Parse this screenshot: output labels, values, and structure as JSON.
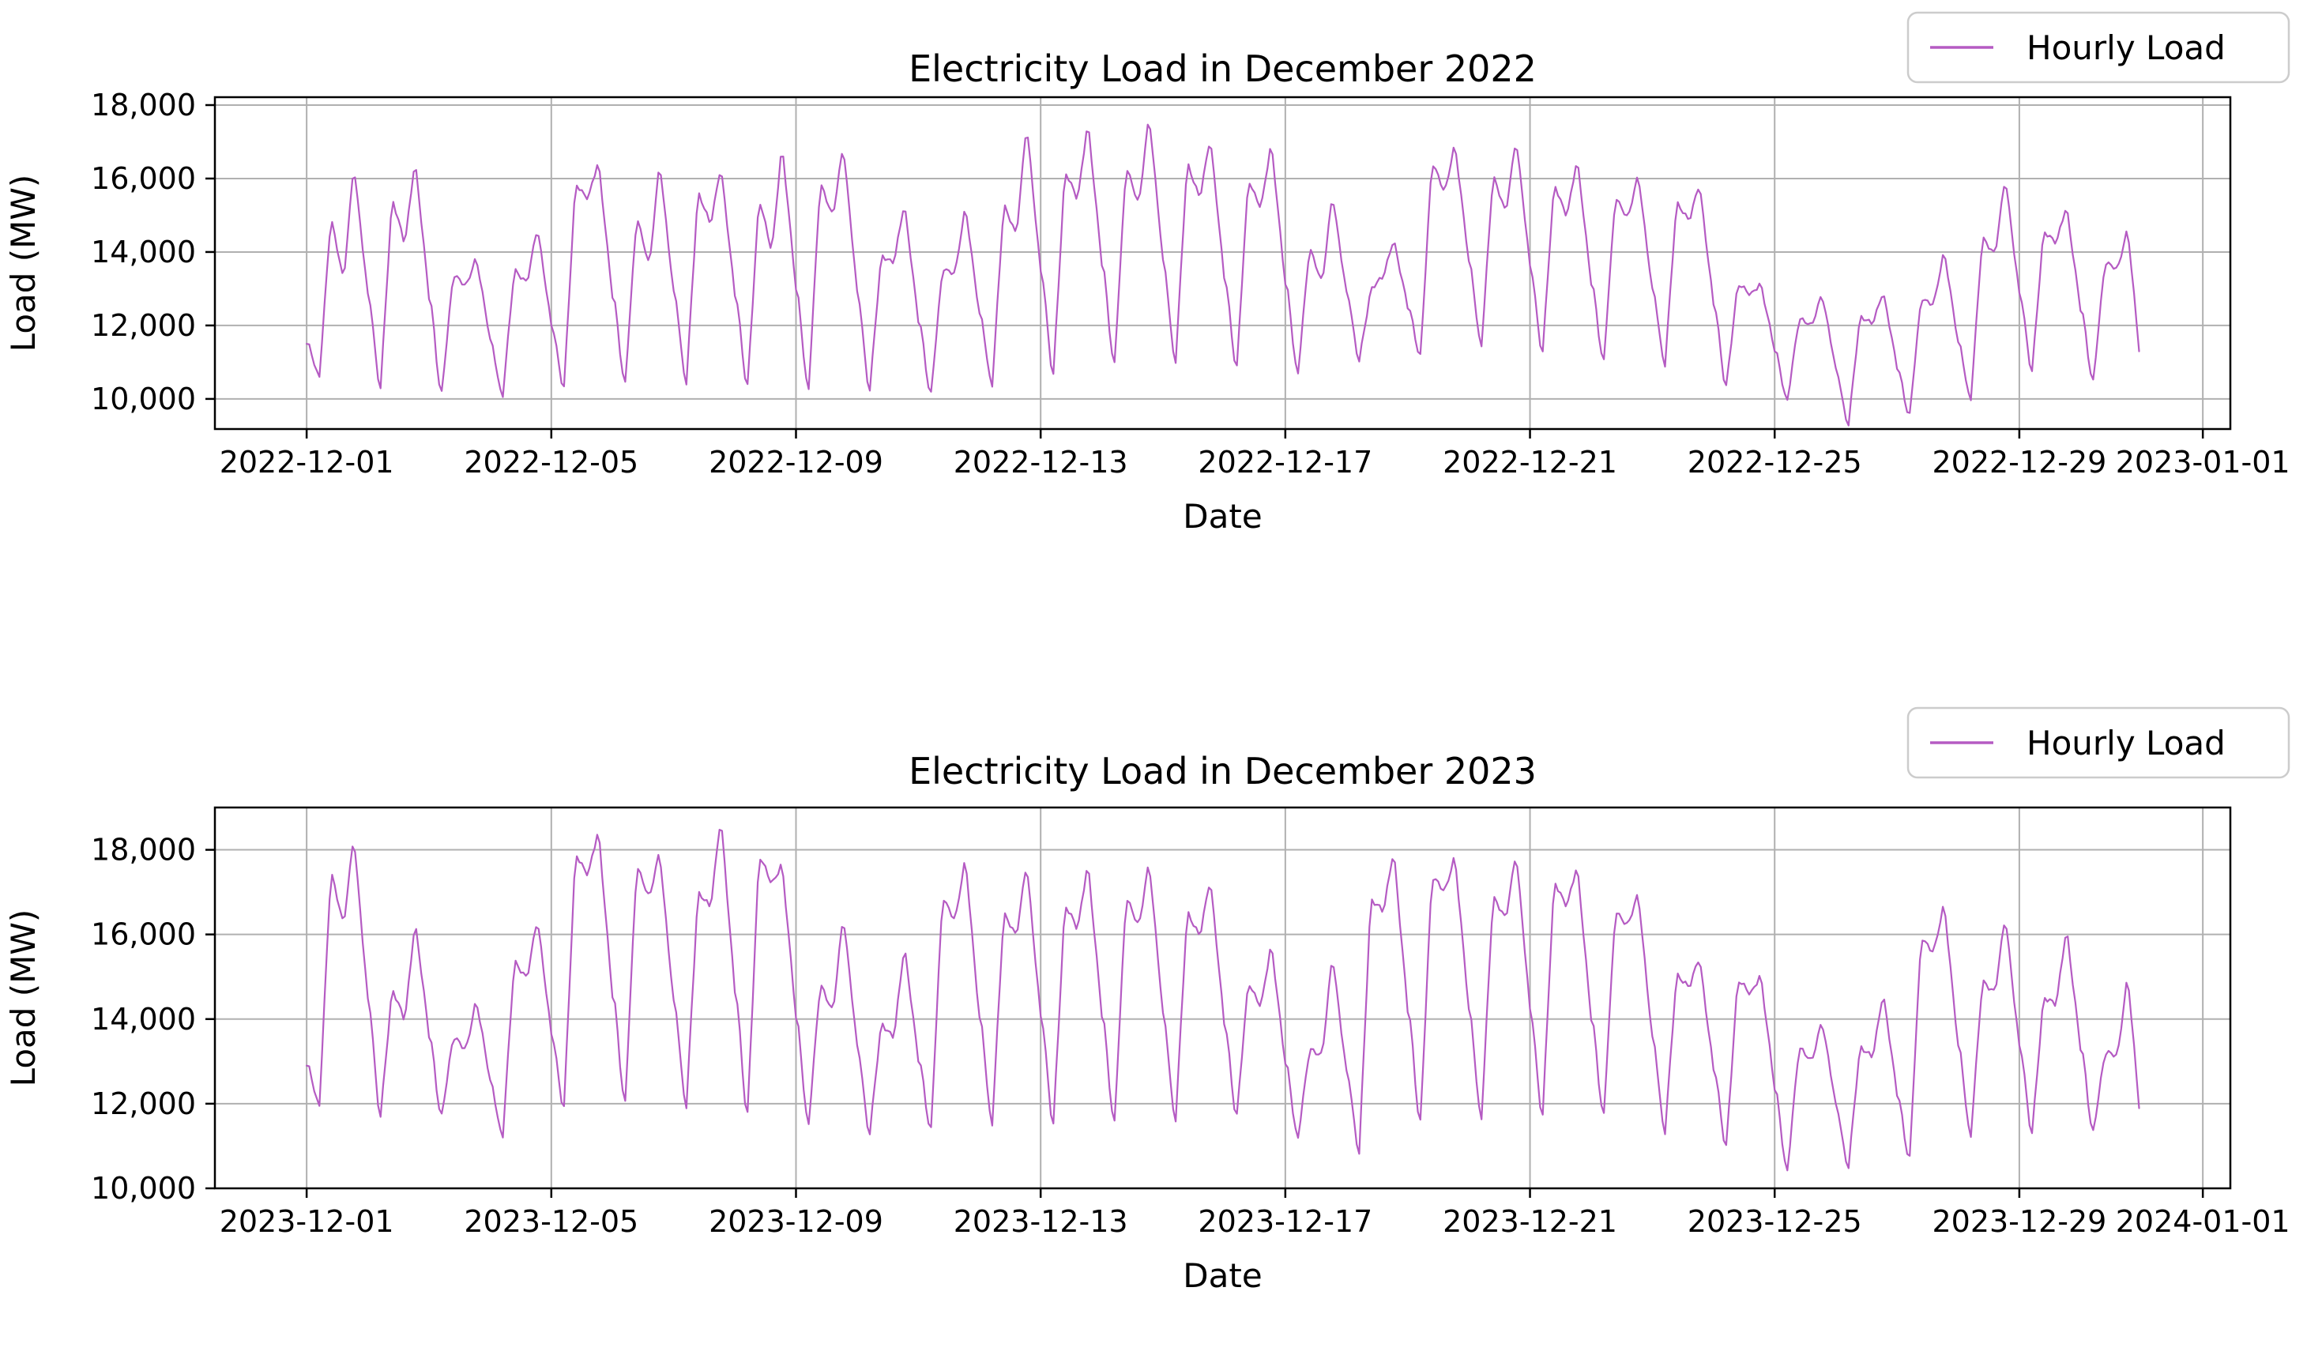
{
  "figure": {
    "background": "#ffffff"
  },
  "colors": {
    "line": "#b55bc3",
    "grid": "#b0b0b0",
    "spine": "#000000",
    "legend_border": "#cccccc",
    "text": "#000000"
  },
  "chart_data": [
    {
      "type": "line",
      "title": "Electricity Load in December 2022",
      "xlabel": "Date",
      "ylabel": "Load (MW)",
      "legend_label": "Hourly Load",
      "line_color": "#b55bc3",
      "grid": true,
      "legend_position": "outside-top-right",
      "x_start_date": "2022-12-01",
      "points_per_day": 24,
      "xlim_days": [
        -1.5,
        31.45
      ],
      "ylim": [
        9180,
        18215
      ],
      "y_ticks": [
        {
          "value": 10000,
          "label": "10,000"
        },
        {
          "value": 12000,
          "label": "12,000"
        },
        {
          "value": 14000,
          "label": "14,000"
        },
        {
          "value": 16000,
          "label": "16,000"
        },
        {
          "value": 18000,
          "label": "18,000"
        }
      ],
      "x_ticks": [
        {
          "day": 0,
          "label": "2022-12-01"
        },
        {
          "day": 4,
          "label": "2022-12-05"
        },
        {
          "day": 8,
          "label": "2022-12-09"
        },
        {
          "day": 12,
          "label": "2022-12-13"
        },
        {
          "day": 16,
          "label": "2022-12-17"
        },
        {
          "day": 20,
          "label": "2022-12-21"
        },
        {
          "day": 24,
          "label": "2022-12-25"
        },
        {
          "day": 28,
          "label": "2022-12-29"
        },
        {
          "day": 31,
          "label": "2023-01-01"
        }
      ],
      "start_value_mw": 11500,
      "end_value_mw": 11300,
      "daily_anchors_hours": {
        "trough": 5,
        "morning": 9.5,
        "midday": 14.5,
        "evening": 18.5
      },
      "days": [
        {
          "date": "2022-12-01",
          "trough_mw": 10600,
          "morning_peak_mw": 15000,
          "midday_dip_mw": 13150,
          "evening_peak_mw": 16450
        },
        {
          "date": "2022-12-02",
          "trough_mw": 10350,
          "morning_peak_mw": 15450,
          "midday_dip_mw": 14200,
          "evening_peak_mw": 16550
        },
        {
          "date": "2022-12-03",
          "trough_mw": 10200,
          "morning_peak_mw": 13350,
          "midday_dip_mw": 13100,
          "evening_peak_mw": 13850
        },
        {
          "date": "2022-12-04",
          "trough_mw": 10100,
          "morning_peak_mw": 13500,
          "midday_dip_mw": 13200,
          "evening_peak_mw": 14650
        },
        {
          "date": "2022-12-05",
          "trough_mw": 10300,
          "morning_peak_mw": 15900,
          "midday_dip_mw": 15450,
          "evening_peak_mw": 16450
        },
        {
          "date": "2022-12-06",
          "trough_mw": 10400,
          "morning_peak_mw": 15050,
          "midday_dip_mw": 13550,
          "evening_peak_mw": 16500
        },
        {
          "date": "2022-12-07",
          "trough_mw": 10450,
          "morning_peak_mw": 15650,
          "midday_dip_mw": 14700,
          "evening_peak_mw": 16400
        },
        {
          "date": "2022-12-08",
          "trough_mw": 10400,
          "morning_peak_mw": 15450,
          "midday_dip_mw": 14000,
          "evening_peak_mw": 16950
        },
        {
          "date": "2022-12-09",
          "trough_mw": 10300,
          "morning_peak_mw": 15850,
          "midday_dip_mw": 15000,
          "evening_peak_mw": 16900
        },
        {
          "date": "2022-12-10",
          "trough_mw": 10250,
          "morning_peak_mw": 13900,
          "midday_dip_mw": 13750,
          "evening_peak_mw": 15300
        },
        {
          "date": "2022-12-11",
          "trough_mw": 10100,
          "morning_peak_mw": 13600,
          "midday_dip_mw": 13400,
          "evening_peak_mw": 15250
        },
        {
          "date": "2022-12-12",
          "trough_mw": 10350,
          "morning_peak_mw": 15350,
          "midday_dip_mw": 14400,
          "evening_peak_mw": 17550
        },
        {
          "date": "2022-12-13",
          "trough_mw": 10700,
          "morning_peak_mw": 16200,
          "midday_dip_mw": 15400,
          "evening_peak_mw": 17600
        },
        {
          "date": "2022-12-14",
          "trough_mw": 11000,
          "morning_peak_mw": 16300,
          "midday_dip_mw": 15300,
          "evening_peak_mw": 17750
        },
        {
          "date": "2022-12-15",
          "trough_mw": 11050,
          "morning_peak_mw": 16400,
          "midday_dip_mw": 15500,
          "evening_peak_mw": 17100
        },
        {
          "date": "2022-12-16",
          "trough_mw": 10850,
          "morning_peak_mw": 16000,
          "midday_dip_mw": 15200,
          "evening_peak_mw": 16950
        },
        {
          "date": "2022-12-17",
          "trough_mw": 10650,
          "morning_peak_mw": 14200,
          "midday_dip_mw": 13100,
          "evening_peak_mw": 15600
        },
        {
          "date": "2022-12-18",
          "trough_mw": 11050,
          "morning_peak_mw": 13000,
          "midday_dip_mw": 13300,
          "evening_peak_mw": 14400
        },
        {
          "date": "2022-12-19",
          "trough_mw": 11200,
          "morning_peak_mw": 16450,
          "midday_dip_mw": 15600,
          "evening_peak_mw": 17000
        },
        {
          "date": "2022-12-20",
          "trough_mw": 11500,
          "morning_peak_mw": 16050,
          "midday_dip_mw": 15100,
          "evening_peak_mw": 17100
        },
        {
          "date": "2022-12-21",
          "trough_mw": 11300,
          "morning_peak_mw": 15850,
          "midday_dip_mw": 15000,
          "evening_peak_mw": 16500
        },
        {
          "date": "2022-12-22",
          "trough_mw": 11000,
          "morning_peak_mw": 15550,
          "midday_dip_mw": 14900,
          "evening_peak_mw": 16100
        },
        {
          "date": "2022-12-23",
          "trough_mw": 10900,
          "morning_peak_mw": 15400,
          "midday_dip_mw": 14800,
          "evening_peak_mw": 15900
        },
        {
          "date": "2022-12-24",
          "trough_mw": 10350,
          "morning_peak_mw": 13150,
          "midday_dip_mw": 12800,
          "evening_peak_mw": 13200
        },
        {
          "date": "2022-12-25",
          "trough_mw": 10000,
          "morning_peak_mw": 12150,
          "midday_dip_mw": 12000,
          "evening_peak_mw": 12900
        },
        {
          "date": "2022-12-26",
          "trough_mw": 9350,
          "morning_peak_mw": 12200,
          "midday_dip_mw": 12100,
          "evening_peak_mw": 12900
        },
        {
          "date": "2022-12-27",
          "trough_mw": 9550,
          "morning_peak_mw": 12750,
          "midday_dip_mw": 12600,
          "evening_peak_mw": 14000
        },
        {
          "date": "2022-12-28",
          "trough_mw": 9950,
          "morning_peak_mw": 14450,
          "midday_dip_mw": 13900,
          "evening_peak_mw": 16050
        },
        {
          "date": "2022-12-29",
          "trough_mw": 10750,
          "morning_peak_mw": 14600,
          "midday_dip_mw": 14200,
          "evening_peak_mw": 15300
        },
        {
          "date": "2022-12-30",
          "trough_mw": 10500,
          "morning_peak_mw": 13700,
          "midday_dip_mw": 13500,
          "evening_peak_mw": 14700
        }
      ]
    },
    {
      "type": "line",
      "title": "Electricity Load in December 2023",
      "xlabel": "Date",
      "ylabel": "Load (MW)",
      "legend_label": "Hourly Load",
      "line_color": "#b55bc3",
      "grid": true,
      "legend_position": "outside-top-right",
      "x_start_date": "2023-12-01",
      "points_per_day": 24,
      "xlim_days": [
        -1.5,
        31.45
      ],
      "ylim": [
        10000,
        19000
      ],
      "y_ticks": [
        {
          "value": 10000,
          "label": "10,000"
        },
        {
          "value": 12000,
          "label": "12,000"
        },
        {
          "value": 14000,
          "label": "14,000"
        },
        {
          "value": 16000,
          "label": "16,000"
        },
        {
          "value": 18000,
          "label": "18,000"
        }
      ],
      "x_ticks": [
        {
          "day": 0,
          "label": "2023-12-01"
        },
        {
          "day": 4,
          "label": "2023-12-05"
        },
        {
          "day": 8,
          "label": "2023-12-09"
        },
        {
          "day": 12,
          "label": "2023-12-13"
        },
        {
          "day": 16,
          "label": "2023-12-17"
        },
        {
          "day": 20,
          "label": "2023-12-21"
        },
        {
          "day": 24,
          "label": "2023-12-25"
        },
        {
          "day": 28,
          "label": "2023-12-29"
        },
        {
          "day": 31,
          "label": "2024-01-01"
        }
      ],
      "start_value_mw": 12900,
      "end_value_mw": 11900,
      "daily_anchors_hours": {
        "trough": 5,
        "morning": 9.5,
        "midday": 14.5,
        "evening": 18.5
      },
      "days": [
        {
          "date": "2023-12-01",
          "trough_mw": 11950,
          "morning_peak_mw": 17550,
          "midday_dip_mw": 16150,
          "evening_peak_mw": 18400
        },
        {
          "date": "2023-12-02",
          "trough_mw": 11750,
          "morning_peak_mw": 14700,
          "midday_dip_mw": 13950,
          "evening_peak_mw": 16350
        },
        {
          "date": "2023-12-03",
          "trough_mw": 11750,
          "morning_peak_mw": 13550,
          "midday_dip_mw": 13300,
          "evening_peak_mw": 14450
        },
        {
          "date": "2023-12-04",
          "trough_mw": 11250,
          "morning_peak_mw": 15350,
          "midday_dip_mw": 15000,
          "evening_peak_mw": 16350
        },
        {
          "date": "2023-12-05",
          "trough_mw": 11900,
          "morning_peak_mw": 17950,
          "midday_dip_mw": 17400,
          "evening_peak_mw": 18450
        },
        {
          "date": "2023-12-06",
          "trough_mw": 12000,
          "morning_peak_mw": 17700,
          "midday_dip_mw": 16800,
          "evening_peak_mw": 18000
        },
        {
          "date": "2023-12-07",
          "trough_mw": 11950,
          "morning_peak_mw": 17000,
          "midday_dip_mw": 16600,
          "evening_peak_mw": 18850
        },
        {
          "date": "2023-12-08",
          "trough_mw": 11800,
          "morning_peak_mw": 17850,
          "midday_dip_mw": 17200,
          "evening_peak_mw": 17700
        },
        {
          "date": "2023-12-09",
          "trough_mw": 11550,
          "morning_peak_mw": 14800,
          "midday_dip_mw": 14200,
          "evening_peak_mw": 16450
        },
        {
          "date": "2023-12-10",
          "trough_mw": 11300,
          "morning_peak_mw": 13900,
          "midday_dip_mw": 13600,
          "evening_peak_mw": 15700
        },
        {
          "date": "2023-12-11",
          "trough_mw": 11350,
          "morning_peak_mw": 16950,
          "midday_dip_mw": 16300,
          "evening_peak_mw": 17800
        },
        {
          "date": "2023-12-12",
          "trough_mw": 11500,
          "morning_peak_mw": 16550,
          "midday_dip_mw": 15900,
          "evening_peak_mw": 17750
        },
        {
          "date": "2023-12-13",
          "trough_mw": 11550,
          "morning_peak_mw": 16700,
          "midday_dip_mw": 16100,
          "evening_peak_mw": 17750
        },
        {
          "date": "2023-12-14",
          "trough_mw": 11600,
          "morning_peak_mw": 16850,
          "midday_dip_mw": 16200,
          "evening_peak_mw": 17750
        },
        {
          "date": "2023-12-15",
          "trough_mw": 11650,
          "morning_peak_mw": 16500,
          "midday_dip_mw": 16000,
          "evening_peak_mw": 17300
        },
        {
          "date": "2023-12-16",
          "trough_mw": 11700,
          "morning_peak_mw": 14900,
          "midday_dip_mw": 14300,
          "evening_peak_mw": 15750
        },
        {
          "date": "2023-12-17",
          "trough_mw": 11150,
          "morning_peak_mw": 13350,
          "midday_dip_mw": 13100,
          "evening_peak_mw": 15550
        },
        {
          "date": "2023-12-18",
          "trough_mw": 10850,
          "morning_peak_mw": 16850,
          "midday_dip_mw": 16500,
          "evening_peak_mw": 18050
        },
        {
          "date": "2023-12-19",
          "trough_mw": 11600,
          "morning_peak_mw": 17350,
          "midday_dip_mw": 17000,
          "evening_peak_mw": 17900
        },
        {
          "date": "2023-12-20",
          "trough_mw": 11700,
          "morning_peak_mw": 16850,
          "midday_dip_mw": 16400,
          "evening_peak_mw": 17950
        },
        {
          "date": "2023-12-21",
          "trough_mw": 11750,
          "morning_peak_mw": 17250,
          "midday_dip_mw": 16700,
          "evening_peak_mw": 17600
        },
        {
          "date": "2023-12-22",
          "trough_mw": 11700,
          "morning_peak_mw": 16600,
          "midday_dip_mw": 16200,
          "evening_peak_mw": 16950
        },
        {
          "date": "2023-12-23",
          "trough_mw": 11300,
          "morning_peak_mw": 15100,
          "midday_dip_mw": 14700,
          "evening_peak_mw": 15500
        },
        {
          "date": "2023-12-24",
          "trough_mw": 11000,
          "morning_peak_mw": 14950,
          "midday_dip_mw": 14550,
          "evening_peak_mw": 15100
        },
        {
          "date": "2023-12-25",
          "trough_mw": 10450,
          "morning_peak_mw": 13300,
          "midday_dip_mw": 13000,
          "evening_peak_mw": 14000
        },
        {
          "date": "2023-12-26",
          "trough_mw": 10550,
          "morning_peak_mw": 13300,
          "midday_dip_mw": 13150,
          "evening_peak_mw": 14600
        },
        {
          "date": "2023-12-27",
          "trough_mw": 10700,
          "morning_peak_mw": 15950,
          "midday_dip_mw": 15600,
          "evening_peak_mw": 16700
        },
        {
          "date": "2023-12-28",
          "trough_mw": 11200,
          "morning_peak_mw": 14950,
          "midday_dip_mw": 14600,
          "evening_peak_mw": 16450
        },
        {
          "date": "2023-12-29",
          "trough_mw": 11300,
          "morning_peak_mw": 14550,
          "midday_dip_mw": 14300,
          "evening_peak_mw": 16200
        },
        {
          "date": "2023-12-30",
          "trough_mw": 11350,
          "morning_peak_mw": 13200,
          "midday_dip_mw": 13100,
          "evening_peak_mw": 15100
        }
      ]
    }
  ]
}
